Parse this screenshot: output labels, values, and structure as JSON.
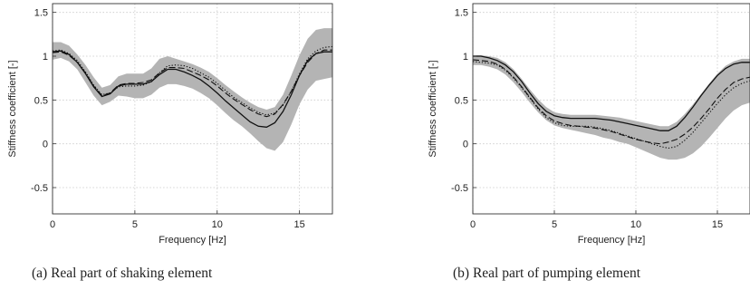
{
  "chart_data": [
    {
      "type": "line",
      "xlabel": "Frequency [Hz]",
      "ylabel": "Stiffness coefficient [-]",
      "caption": "(a)  Real part of shaking element",
      "xlim": [
        0,
        17
      ],
      "ylim": [
        -0.8,
        1.6
      ],
      "xticks": [
        "0",
        "5",
        "10",
        "15"
      ],
      "yticks": [
        "1.5",
        "1",
        "0.5",
        "0",
        "-0.5"
      ],
      "grid": true,
      "x": [
        0,
        0.5,
        1,
        1.5,
        2,
        2.5,
        3,
        3.5,
        4,
        4.5,
        5,
        5.5,
        6,
        6.5,
        7,
        7.5,
        8,
        8.5,
        9,
        9.5,
        10,
        10.5,
        11,
        11.5,
        12,
        12.5,
        13,
        13.5,
        14,
        14.5,
        15,
        15.5,
        16,
        16.5,
        17
      ],
      "band": {
        "color": "#b4b4b4",
        "lower": [
          0.96,
          0.98,
          0.94,
          0.85,
          0.7,
          0.55,
          0.44,
          0.48,
          0.55,
          0.54,
          0.52,
          0.52,
          0.56,
          0.64,
          0.68,
          0.68,
          0.66,
          0.63,
          0.58,
          0.52,
          0.44,
          0.35,
          0.27,
          0.2,
          0.12,
          0.03,
          -0.05,
          -0.08,
          0.02,
          0.22,
          0.45,
          0.62,
          0.72,
          0.74,
          0.76
        ],
        "upper": [
          1.16,
          1.16,
          1.12,
          1.02,
          0.9,
          0.76,
          0.64,
          0.67,
          0.77,
          0.8,
          0.8,
          0.8,
          0.86,
          0.97,
          1.0,
          0.97,
          0.94,
          0.91,
          0.87,
          0.82,
          0.75,
          0.67,
          0.6,
          0.53,
          0.47,
          0.42,
          0.39,
          0.42,
          0.56,
          0.78,
          1.01,
          1.2,
          1.3,
          1.32,
          1.32
        ]
      },
      "series": [
        {
          "style": "solid",
          "values": [
            1.05,
            1.06,
            1.02,
            0.93,
            0.8,
            0.65,
            0.54,
            0.57,
            0.66,
            0.68,
            0.68,
            0.68,
            0.71,
            0.79,
            0.85,
            0.85,
            0.82,
            0.78,
            0.73,
            0.66,
            0.58,
            0.49,
            0.41,
            0.33,
            0.25,
            0.2,
            0.19,
            0.24,
            0.37,
            0.56,
            0.78,
            0.95,
            1.03,
            1.05,
            1.05
          ]
        },
        {
          "style": "dashed",
          "values": [
            1.04,
            1.05,
            1.01,
            0.93,
            0.81,
            0.66,
            0.55,
            0.58,
            0.67,
            0.69,
            0.69,
            0.7,
            0.73,
            0.81,
            0.87,
            0.87,
            0.86,
            0.82,
            0.78,
            0.73,
            0.66,
            0.58,
            0.51,
            0.45,
            0.39,
            0.34,
            0.31,
            0.34,
            0.45,
            0.6,
            0.78,
            0.93,
            1.03,
            1.07,
            1.07
          ]
        },
        {
          "style": "dotted",
          "values": [
            1.06,
            1.07,
            1.03,
            0.95,
            0.82,
            0.67,
            0.56,
            0.58,
            0.65,
            0.66,
            0.66,
            0.67,
            0.71,
            0.81,
            0.89,
            0.9,
            0.89,
            0.86,
            0.81,
            0.76,
            0.69,
            0.61,
            0.53,
            0.47,
            0.41,
            0.36,
            0.33,
            0.35,
            0.44,
            0.6,
            0.8,
            0.97,
            1.06,
            1.1,
            1.11
          ]
        }
      ]
    },
    {
      "type": "line",
      "xlabel": "Frequency [Hz]",
      "ylabel": "Stiffness coefficient [-]",
      "caption": "(b)  Real part of pumping element",
      "xlim": [
        0,
        17
      ],
      "ylim": [
        -0.8,
        1.6
      ],
      "xticks": [
        "0",
        "5",
        "10",
        "15"
      ],
      "yticks": [
        "1.5",
        "1",
        "0.5",
        "0",
        "-0.5"
      ],
      "grid": true,
      "x": [
        0,
        0.5,
        1,
        1.5,
        2,
        2.5,
        3,
        3.5,
        4,
        4.5,
        5,
        5.5,
        6,
        6.5,
        7,
        7.5,
        8,
        8.5,
        9,
        9.5,
        10,
        10.5,
        11,
        11.5,
        12,
        12.5,
        13,
        13.5,
        14,
        14.5,
        15,
        15.5,
        16,
        16.5,
        17
      ],
      "band": {
        "color": "#b4b4b4",
        "lower": [
          0.9,
          0.9,
          0.88,
          0.85,
          0.79,
          0.7,
          0.59,
          0.47,
          0.36,
          0.27,
          0.21,
          0.18,
          0.16,
          0.14,
          0.12,
          0.1,
          0.07,
          0.05,
          0.02,
          0.0,
          -0.04,
          -0.08,
          -0.12,
          -0.16,
          -0.18,
          -0.18,
          -0.16,
          -0.11,
          -0.03,
          0.07,
          0.18,
          0.29,
          0.38,
          0.44,
          0.47
        ],
        "upper": [
          1.01,
          1.01,
          1.0,
          0.98,
          0.93,
          0.85,
          0.74,
          0.62,
          0.51,
          0.42,
          0.36,
          0.34,
          0.33,
          0.33,
          0.33,
          0.33,
          0.32,
          0.31,
          0.3,
          0.28,
          0.26,
          0.24,
          0.22,
          0.2,
          0.2,
          0.25,
          0.34,
          0.45,
          0.57,
          0.69,
          0.8,
          0.89,
          0.94,
          0.97,
          0.97
        ]
      },
      "series": [
        {
          "style": "solid",
          "values": [
            1.0,
            1.0,
            0.98,
            0.95,
            0.9,
            0.82,
            0.71,
            0.58,
            0.46,
            0.37,
            0.32,
            0.3,
            0.29,
            0.29,
            0.29,
            0.29,
            0.28,
            0.27,
            0.25,
            0.23,
            0.21,
            0.19,
            0.17,
            0.15,
            0.15,
            0.2,
            0.3,
            0.42,
            0.55,
            0.67,
            0.78,
            0.86,
            0.91,
            0.93,
            0.93
          ]
        },
        {
          "style": "dashed",
          "values": [
            0.96,
            0.95,
            0.94,
            0.91,
            0.85,
            0.76,
            0.65,
            0.53,
            0.41,
            0.32,
            0.26,
            0.23,
            0.21,
            0.2,
            0.19,
            0.18,
            0.16,
            0.14,
            0.11,
            0.08,
            0.05,
            0.03,
            0.01,
            0.0,
            0.02,
            0.05,
            0.11,
            0.19,
            0.29,
            0.4,
            0.52,
            0.62,
            0.7,
            0.74,
            0.76
          ]
        },
        {
          "style": "dotted",
          "values": [
            0.94,
            0.93,
            0.92,
            0.9,
            0.84,
            0.75,
            0.64,
            0.52,
            0.4,
            0.3,
            0.24,
            0.21,
            0.2,
            0.2,
            0.2,
            0.19,
            0.17,
            0.15,
            0.12,
            0.09,
            0.06,
            0.03,
            0.0,
            -0.03,
            -0.05,
            -0.03,
            0.04,
            0.13,
            0.24,
            0.35,
            0.46,
            0.56,
            0.64,
            0.69,
            0.72
          ]
        }
      ]
    }
  ]
}
